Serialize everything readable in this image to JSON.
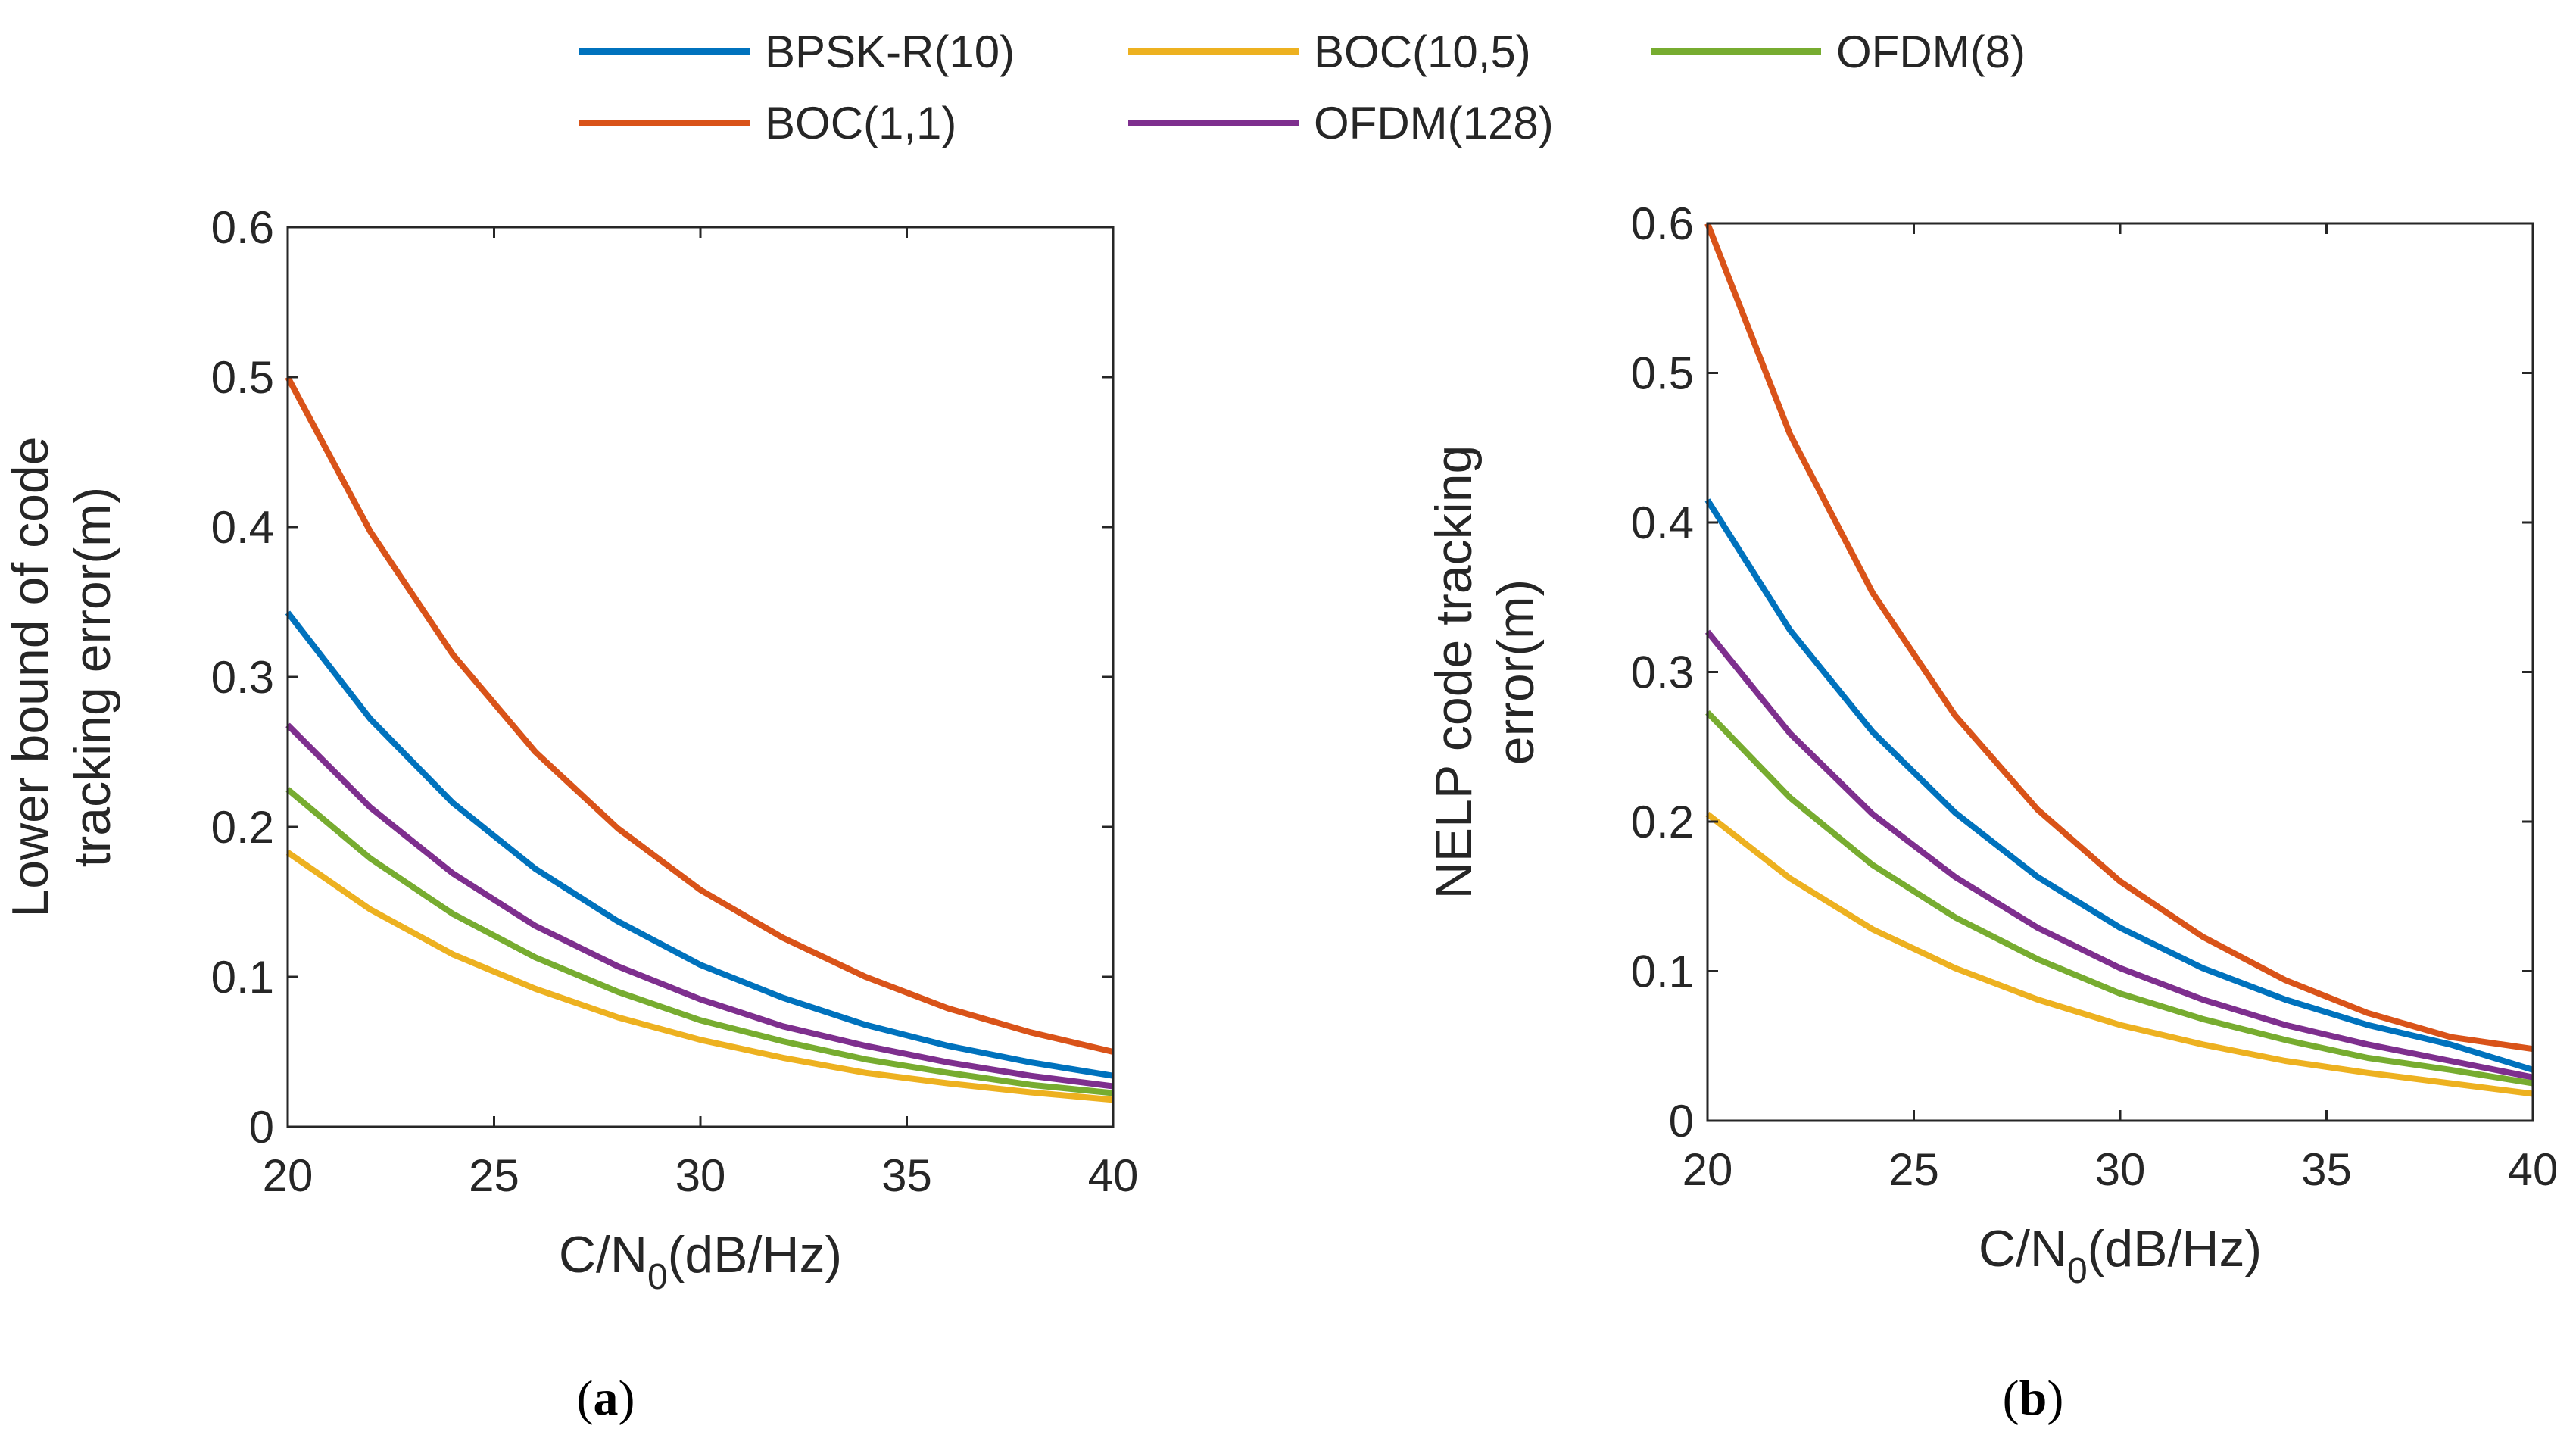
{
  "legend": [
    {
      "name": "BPSK-R(10)",
      "color": "#0072BD"
    },
    {
      "name": "BOC(10,5)",
      "color": "#EDB120"
    },
    {
      "name": "OFDM(8)",
      "color": "#77AC30"
    },
    {
      "name": "BOC(1,1)",
      "color": "#D95319"
    },
    {
      "name": "OFDM(128)",
      "color": "#7E2F8E"
    }
  ],
  "chart_data": [
    {
      "type": "line",
      "caption_open": "(",
      "caption_letter": "a",
      "caption_close": ")",
      "xlabel_prefix": "C/N",
      "xlabel_sub": "0",
      "xlabel_suffix": "(dB/Hz)",
      "ylabel_lines": [
        "Lower bound of code",
        "tracking error(m)"
      ],
      "xlim": [
        20,
        40
      ],
      "ylim": [
        0,
        0.6
      ],
      "xticks": [
        "20",
        "25",
        "30",
        "35",
        "40"
      ],
      "yticks": [
        "0",
        "0.1",
        "0.2",
        "0.3",
        "0.4",
        "0.5",
        "0.6"
      ],
      "x": [
        20,
        22,
        24,
        26,
        28,
        30,
        32,
        34,
        36,
        38,
        40
      ],
      "series": [
        {
          "name": "BOC(1,1)",
          "color": "#D95319",
          "values": [
            0.5,
            0.397,
            0.315,
            0.25,
            0.199,
            0.158,
            0.126,
            0.1,
            0.079,
            0.063,
            0.05
          ]
        },
        {
          "name": "BPSK-R(10)",
          "color": "#0072BD",
          "values": [
            0.343,
            0.272,
            0.216,
            0.172,
            0.137,
            0.108,
            0.086,
            0.068,
            0.054,
            0.043,
            0.034
          ]
        },
        {
          "name": "OFDM(128)",
          "color": "#7E2F8E",
          "values": [
            0.268,
            0.213,
            0.169,
            0.134,
            0.107,
            0.085,
            0.067,
            0.054,
            0.043,
            0.034,
            0.027
          ]
        },
        {
          "name": "OFDM(8)",
          "color": "#77AC30",
          "values": [
            0.225,
            0.179,
            0.142,
            0.113,
            0.09,
            0.071,
            0.057,
            0.045,
            0.036,
            0.028,
            0.0225
          ]
        },
        {
          "name": "BOC(10,5)",
          "color": "#EDB120",
          "values": [
            0.183,
            0.145,
            0.115,
            0.092,
            0.073,
            0.058,
            0.046,
            0.036,
            0.029,
            0.023,
            0.018
          ]
        }
      ]
    },
    {
      "type": "line",
      "caption_open": "(",
      "caption_letter": "b",
      "caption_close": ")",
      "xlabel_prefix": "C/N",
      "xlabel_sub": "0",
      "xlabel_suffix": "(dB/Hz)",
      "ylabel_lines": [
        "NELP code tracking",
        "error(m)"
      ],
      "xlim": [
        20,
        40
      ],
      "ylim": [
        0,
        0.6
      ],
      "xticks": [
        "20",
        "25",
        "30",
        "35",
        "40"
      ],
      "yticks": [
        "0",
        "0.1",
        "0.2",
        "0.3",
        "0.4",
        "0.5",
        "0.6"
      ],
      "x": [
        20,
        22,
        24,
        26,
        28,
        30,
        32,
        34,
        36,
        38,
        40
      ],
      "series": [
        {
          "name": "BOC(1,1)",
          "color": "#D95319",
          "values": [
            0.6,
            0.459,
            0.353,
            0.271,
            0.208,
            0.16,
            0.123,
            0.094,
            0.072,
            0.056,
            0.048
          ]
        },
        {
          "name": "BPSK-R(10)",
          "color": "#0072BD",
          "values": [
            0.415,
            0.328,
            0.26,
            0.206,
            0.163,
            0.129,
            0.102,
            0.081,
            0.064,
            0.051,
            0.034
          ]
        },
        {
          "name": "OFDM(128)",
          "color": "#7E2F8E",
          "values": [
            0.327,
            0.259,
            0.205,
            0.163,
            0.129,
            0.102,
            0.081,
            0.064,
            0.051,
            0.04,
            0.029
          ]
        },
        {
          "name": "OFDM(8)",
          "color": "#77AC30",
          "values": [
            0.273,
            0.216,
            0.171,
            0.136,
            0.108,
            0.085,
            0.068,
            0.054,
            0.042,
            0.034,
            0.025
          ]
        },
        {
          "name": "BOC(10,5)",
          "color": "#EDB120",
          "values": [
            0.205,
            0.162,
            0.128,
            0.102,
            0.081,
            0.064,
            0.051,
            0.04,
            0.032,
            0.025,
            0.018
          ]
        }
      ]
    }
  ]
}
